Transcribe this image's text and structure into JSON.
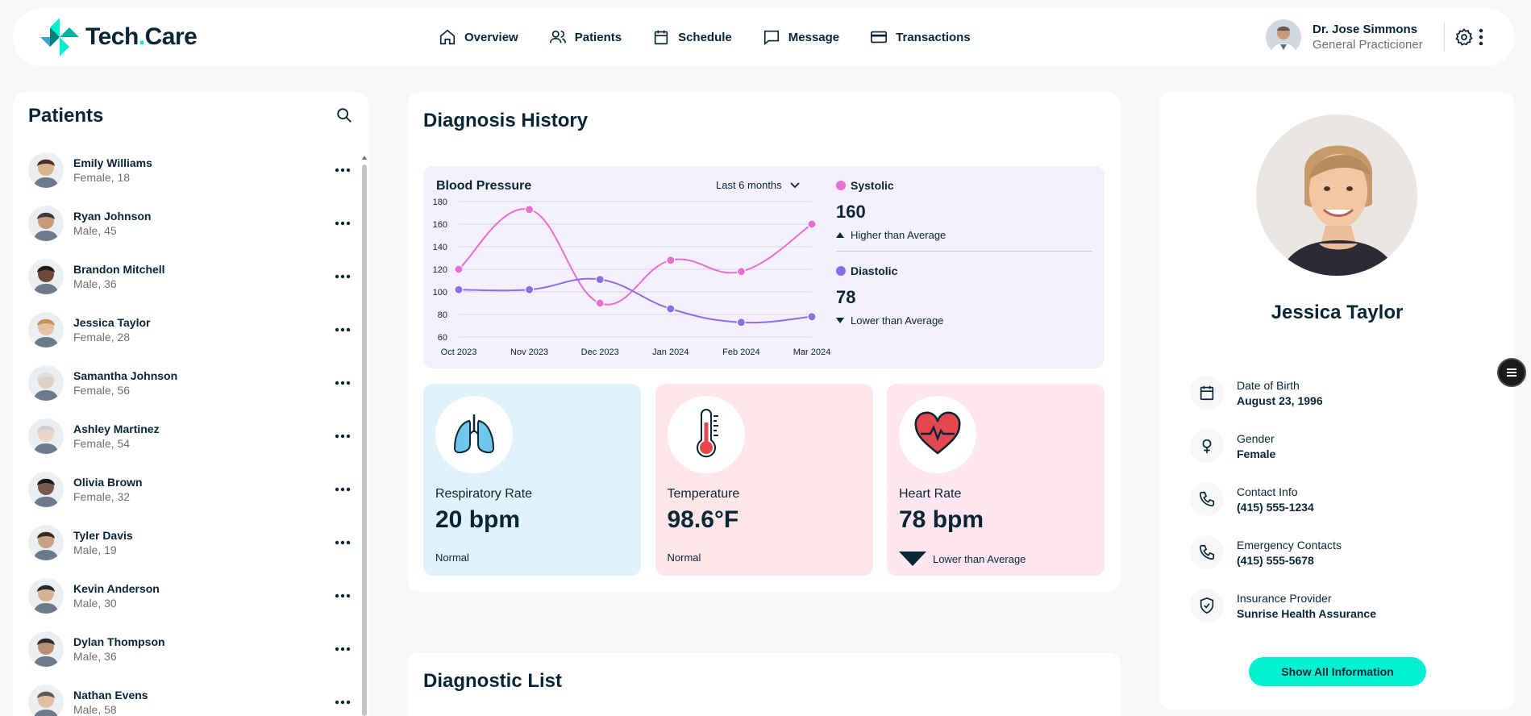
{
  "app": {
    "logo_text_main": "Tech",
    "logo_text_dot": ".",
    "logo_text_end": "Care"
  },
  "nav": [
    {
      "label": "Overview",
      "icon": "home-icon"
    },
    {
      "label": "Patients",
      "icon": "users-icon"
    },
    {
      "label": "Schedule",
      "icon": "calendar-icon"
    },
    {
      "label": "Message",
      "icon": "message-icon"
    },
    {
      "label": "Transactions",
      "icon": "credit-card-icon"
    }
  ],
  "doctor": {
    "name": "Dr. Jose Simmons",
    "role": "General Practicioner"
  },
  "patients": {
    "title": "Patients",
    "list": [
      {
        "name": "Emily Williams",
        "sub": "Female, 18"
      },
      {
        "name": "Ryan Johnson",
        "sub": "Male, 45"
      },
      {
        "name": "Brandon Mitchell",
        "sub": "Male, 36"
      },
      {
        "name": "Jessica Taylor",
        "sub": "Female, 28"
      },
      {
        "name": "Samantha Johnson",
        "sub": "Female, 56"
      },
      {
        "name": "Ashley Martinez",
        "sub": "Female, 54"
      },
      {
        "name": "Olivia Brown",
        "sub": "Female, 32"
      },
      {
        "name": "Tyler Davis",
        "sub": "Male, 19"
      },
      {
        "name": "Kevin Anderson",
        "sub": "Male, 30"
      },
      {
        "name": "Dylan Thompson",
        "sub": "Male, 36"
      },
      {
        "name": "Nathan Evens",
        "sub": "Male, 58"
      }
    ]
  },
  "diagnosis": {
    "title": "Diagnosis History",
    "bp_title": "Blood Pressure",
    "range_label": "Last 6 months",
    "systolic": {
      "label": "Systolic",
      "value": "160",
      "note": "Higher than Average",
      "color": "#e66fd2"
    },
    "diastolic": {
      "label": "Diastolic",
      "value": "78",
      "note": "Lower than Average",
      "color": "#8c6fe6"
    }
  },
  "chart_data": {
    "type": "line",
    "title": "Blood Pressure",
    "categories": [
      "Oct 2023",
      "Nov 2023",
      "Dec 2023",
      "Jan 2024",
      "Feb 2024",
      "Mar 2024"
    ],
    "series": [
      {
        "name": "Systolic",
        "values": [
          120,
          173,
          90,
          128,
          118,
          160
        ],
        "color": "#e66fd2"
      },
      {
        "name": "Diastolic",
        "values": [
          102,
          102,
          111,
          85,
          73,
          78
        ],
        "color": "#8c6fe6"
      }
    ],
    "ylim": [
      60,
      180
    ],
    "yticks": [
      "60",
      "80",
      "100",
      "120",
      "140",
      "160",
      "180"
    ],
    "grid": true
  },
  "vitals": [
    {
      "label": "Respiratory Rate",
      "value": "20 bpm",
      "status": "Normal",
      "bg": "#e0f3fa",
      "icon": "lungs-icon"
    },
    {
      "label": "Temperature",
      "value": "98.6°F",
      "status": "Normal",
      "bg": "#ffe6e9",
      "icon": "thermometer-icon"
    },
    {
      "label": "Heart Rate",
      "value": "78 bpm",
      "status": "Lower than Average",
      "bg": "#ffe6f1",
      "icon": "heart-icon"
    }
  ],
  "diagnostic_list": {
    "title": "Diagnostic List"
  },
  "profile": {
    "name": "Jessica Taylor",
    "details": [
      {
        "label": "Date of Birth",
        "value": "August 23, 1996",
        "icon": "calendar-icon"
      },
      {
        "label": "Gender",
        "value": "Female",
        "icon": "female-icon"
      },
      {
        "label": "Contact Info",
        "value": "(415) 555-1234",
        "icon": "phone-icon"
      },
      {
        "label": "Emergency Contacts",
        "value": "(415) 555-5678",
        "icon": "phone-icon"
      },
      {
        "label": "Insurance Provider",
        "value": "Sunrise Health Assurance",
        "icon": "shield-icon"
      }
    ],
    "button_label": "Show All Information"
  },
  "colors": {
    "accent": "#01f0d0",
    "text": "#072635",
    "systolic": "#e66fd2",
    "diastolic": "#8c6fe6"
  }
}
